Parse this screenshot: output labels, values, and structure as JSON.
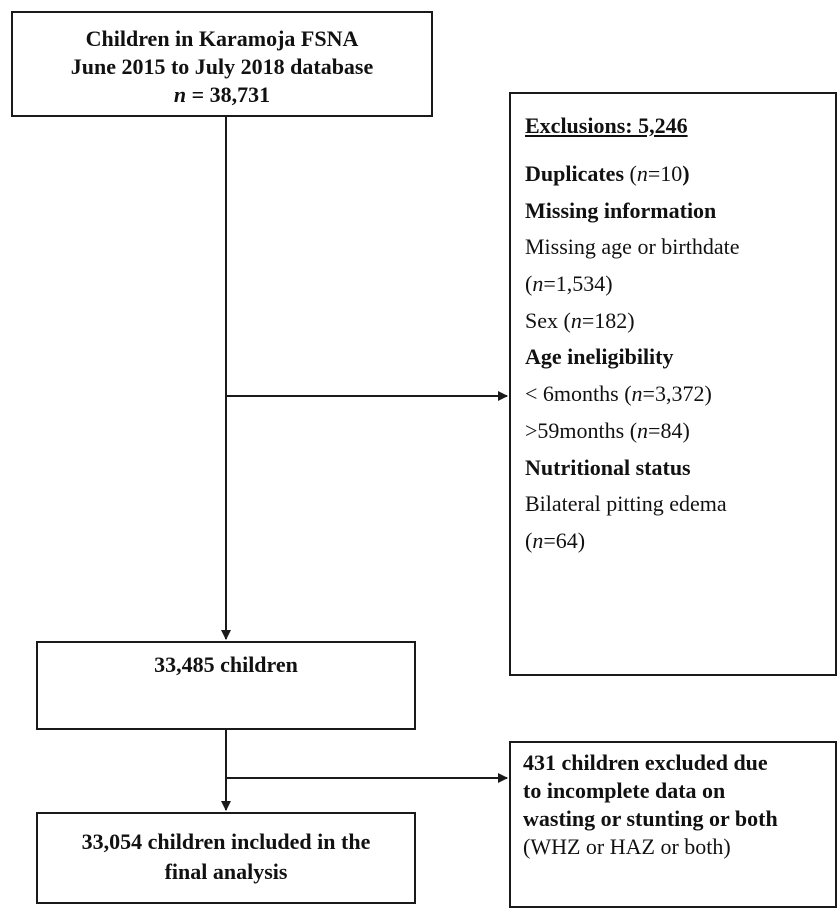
{
  "top_box": {
    "line1": "Children in Karamoja FSNA",
    "line2": "June 2015 to July 2018 database",
    "line3_var": "n",
    "line3_rest": " = 38,731"
  },
  "exclusions_box": {
    "title": "Exclusions: 5,246",
    "duplicates_label": "Duplicates",
    "duplicates_count_pre": " (",
    "duplicates_count_var": "n",
    "duplicates_count_post": "=10",
    "duplicates_close": ")",
    "missing_heading": "Missing information",
    "missing_age_label": "Missing age or birthdate",
    "missing_age_pre": "(",
    "missing_age_var": "n",
    "missing_age_post": "=1,534)",
    "sex_pre": "Sex (",
    "sex_var": "n",
    "sex_post": "=182)",
    "age_heading": "Age ineligibility",
    "under6_pre": "< 6months (",
    "under6_var": "n",
    "under6_post": "=3,372)",
    "over59_pre": ">59months (",
    "over59_var": "n",
    "over59_post": "=84)",
    "nutrition_heading": "Nutritional status",
    "edema_label": "Bilateral pitting edema",
    "edema_pre": "(",
    "edema_var": "n",
    "edema_post": "=64)"
  },
  "middle_box": {
    "text": "33,485 children"
  },
  "final_box": {
    "line1": "33,054 children included in the",
    "line2": "final analysis"
  },
  "exclusion2_box": {
    "line1": "431 children excluded due",
    "line2": "to incomplete data on",
    "line3": "wasting or stunting or both",
    "line4": "(WHZ or HAZ or both)"
  }
}
